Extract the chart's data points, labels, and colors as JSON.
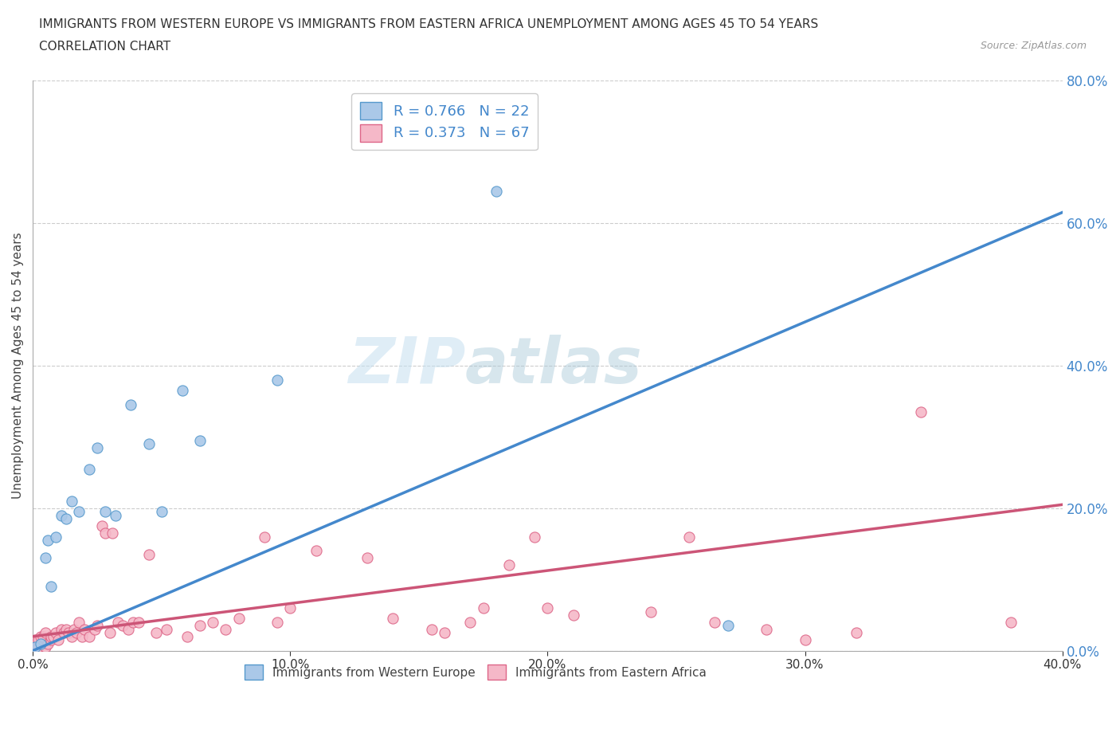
{
  "title_line1": "IMMIGRANTS FROM WESTERN EUROPE VS IMMIGRANTS FROM EASTERN AFRICA UNEMPLOYMENT AMONG AGES 45 TO 54 YEARS",
  "title_line2": "CORRELATION CHART",
  "source": "Source: ZipAtlas.com",
  "ylabel": "Unemployment Among Ages 45 to 54 years",
  "watermark_zip": "ZIP",
  "watermark_atlas": "atlas",
  "blue_R": 0.766,
  "blue_N": 22,
  "pink_R": 0.373,
  "pink_N": 67,
  "blue_fill_color": "#aac8e8",
  "pink_fill_color": "#f5b8c8",
  "blue_edge_color": "#5599cc",
  "pink_edge_color": "#dd6688",
  "blue_line_color": "#4488cc",
  "pink_line_color": "#cc5577",
  "legend_blue_label": "Immigrants from Western Europe",
  "legend_pink_label": "Immigrants from Eastern Africa",
  "xlim": [
    0.0,
    0.4
  ],
  "ylim": [
    0.0,
    0.8
  ],
  "xticks": [
    0.0,
    0.1,
    0.2,
    0.3,
    0.4
  ],
  "yticks": [
    0.0,
    0.2,
    0.4,
    0.6,
    0.8
  ],
  "blue_x": [
    0.001,
    0.003,
    0.005,
    0.006,
    0.007,
    0.009,
    0.011,
    0.013,
    0.015,
    0.018,
    0.022,
    0.025,
    0.028,
    0.032,
    0.038,
    0.045,
    0.05,
    0.058,
    0.065,
    0.095,
    0.18,
    0.27
  ],
  "blue_y": [
    0.005,
    0.01,
    0.13,
    0.155,
    0.09,
    0.16,
    0.19,
    0.185,
    0.21,
    0.195,
    0.255,
    0.285,
    0.195,
    0.19,
    0.345,
    0.29,
    0.195,
    0.365,
    0.295,
    0.38,
    0.645,
    0.035
  ],
  "pink_x": [
    0.001,
    0.001,
    0.002,
    0.002,
    0.003,
    0.003,
    0.004,
    0.005,
    0.005,
    0.006,
    0.007,
    0.007,
    0.008,
    0.009,
    0.01,
    0.011,
    0.012,
    0.013,
    0.014,
    0.015,
    0.016,
    0.017,
    0.018,
    0.019,
    0.02,
    0.022,
    0.024,
    0.025,
    0.027,
    0.028,
    0.03,
    0.031,
    0.033,
    0.035,
    0.037,
    0.039,
    0.041,
    0.045,
    0.048,
    0.052,
    0.06,
    0.065,
    0.07,
    0.075,
    0.08,
    0.09,
    0.095,
    0.1,
    0.11,
    0.13,
    0.14,
    0.155,
    0.16,
    0.17,
    0.175,
    0.185,
    0.195,
    0.2,
    0.21,
    0.24,
    0.255,
    0.265,
    0.285,
    0.3,
    0.32,
    0.345,
    0.38
  ],
  "pink_y": [
    0.01,
    0.015,
    0.005,
    0.015,
    0.01,
    0.02,
    0.02,
    0.005,
    0.025,
    0.01,
    0.015,
    0.02,
    0.02,
    0.025,
    0.015,
    0.03,
    0.025,
    0.03,
    0.025,
    0.02,
    0.03,
    0.025,
    0.04,
    0.02,
    0.03,
    0.02,
    0.03,
    0.035,
    0.175,
    0.165,
    0.025,
    0.165,
    0.04,
    0.035,
    0.03,
    0.04,
    0.04,
    0.135,
    0.025,
    0.03,
    0.02,
    0.035,
    0.04,
    0.03,
    0.045,
    0.16,
    0.04,
    0.06,
    0.14,
    0.13,
    0.045,
    0.03,
    0.025,
    0.04,
    0.06,
    0.12,
    0.16,
    0.06,
    0.05,
    0.055,
    0.16,
    0.04,
    0.03,
    0.015,
    0.025,
    0.335,
    0.04
  ],
  "blue_line_x0": 0.0,
  "blue_line_y0": 0.0,
  "blue_line_x1": 0.4,
  "blue_line_y1": 0.615,
  "pink_line_x0": 0.0,
  "pink_line_y0": 0.02,
  "pink_line_x1": 0.4,
  "pink_line_y1": 0.205
}
